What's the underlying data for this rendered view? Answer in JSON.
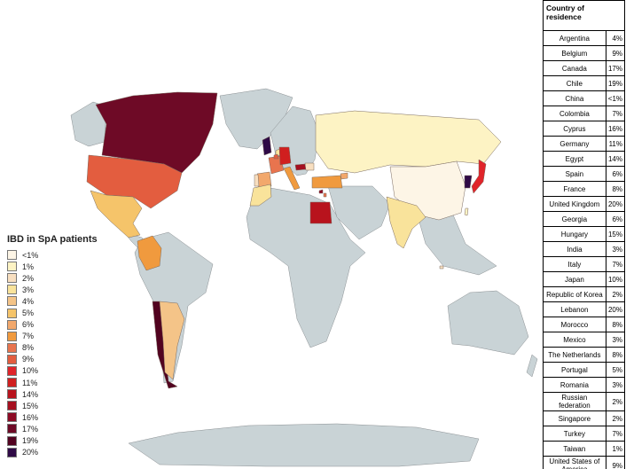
{
  "legend": {
    "title": "IBD in SpA patients",
    "items": [
      {
        "label": "<1%",
        "color": "#fdf5e6"
      },
      {
        "label": "1%",
        "color": "#fdf3c4"
      },
      {
        "label": "2%",
        "color": "#f8dfc0"
      },
      {
        "label": "3%",
        "color": "#f9e39b"
      },
      {
        "label": "4%",
        "color": "#f4c488"
      },
      {
        "label": "5%",
        "color": "#f5c46a"
      },
      {
        "label": "6%",
        "color": "#f2a86c"
      },
      {
        "label": "7%",
        "color": "#f09a3e"
      },
      {
        "label": "8%",
        "color": "#e8744e"
      },
      {
        "label": "9%",
        "color": "#e35d3f"
      },
      {
        "label": "10%",
        "color": "#e0242a"
      },
      {
        "label": "11%",
        "color": "#d01f1f"
      },
      {
        "label": "14%",
        "color": "#b8131d"
      },
      {
        "label": "15%",
        "color": "#a50f1f"
      },
      {
        "label": "16%",
        "color": "#8c0a24"
      },
      {
        "label": "17%",
        "color": "#6e0a26"
      },
      {
        "label": "19%",
        "color": "#520320"
      },
      {
        "label": "20%",
        "color": "#2f0a46"
      }
    ]
  },
  "table": {
    "header": "Country of residence",
    "rows": [
      [
        "Argentina",
        "4%"
      ],
      [
        "Belgium",
        "9%"
      ],
      [
        "Canada",
        "17%"
      ],
      [
        "Chile",
        "19%"
      ],
      [
        "China",
        "<1%"
      ],
      [
        "Colombia",
        "7%"
      ],
      [
        "Cyprus",
        "16%"
      ],
      [
        "Germany",
        "11%"
      ],
      [
        "Egypt",
        "14%"
      ],
      [
        "Spain",
        "6%"
      ],
      [
        "France",
        "8%"
      ],
      [
        "United Kingdom",
        "20%"
      ],
      [
        "Georgia",
        "6%"
      ],
      [
        "Hungary",
        "15%"
      ],
      [
        "India",
        "3%"
      ],
      [
        "Italy",
        "7%"
      ],
      [
        "Japan",
        "10%"
      ],
      [
        "Republic of Korea",
        "2%"
      ],
      [
        "Lebanon",
        "20%"
      ],
      [
        "Morocco",
        "8%"
      ],
      [
        "Mexico",
        "3%"
      ],
      [
        "The Netherlands",
        "8%"
      ],
      [
        "Portugal",
        "5%"
      ],
      [
        "Romania",
        "3%"
      ],
      [
        "Russian federation",
        "2%"
      ],
      [
        "Singapore",
        "2%"
      ],
      [
        "Turkey",
        "7%"
      ],
      [
        "Taiwan",
        "1%"
      ],
      [
        "United States of America",
        "9%"
      ]
    ]
  }
}
